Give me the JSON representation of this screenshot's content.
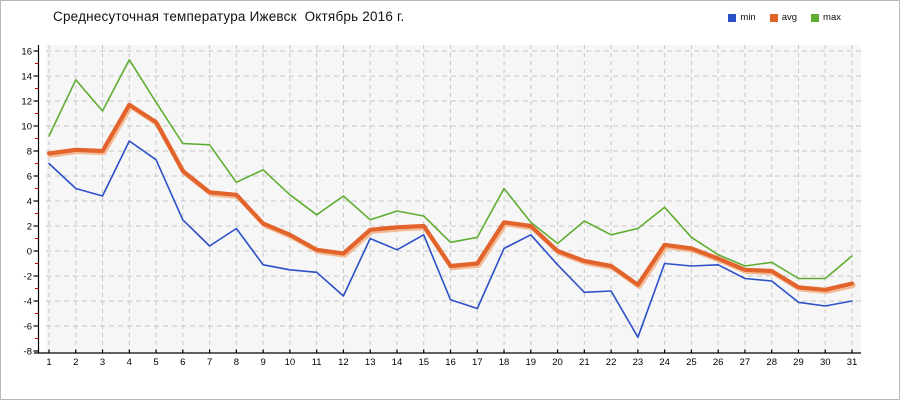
{
  "title": "Среднесуточная температура Ижевск  Октябрь 2016 г.",
  "legend": [
    {
      "label": "min",
      "color": "#2b50c8"
    },
    {
      "label": "avg",
      "color": "#e2632b"
    },
    {
      "label": "max",
      "color": "#5fae32"
    }
  ],
  "chart_data": {
    "type": "line",
    "title": "Среднесуточная температура Ижевск  Октябрь 2016 г.",
    "x": [
      1,
      2,
      3,
      4,
      5,
      6,
      7,
      8,
      9,
      10,
      11,
      12,
      13,
      14,
      15,
      16,
      17,
      18,
      19,
      20,
      21,
      22,
      23,
      24,
      25,
      26,
      27,
      28,
      29,
      30,
      31
    ],
    "series": [
      {
        "name": "min",
        "color": "#2b50c8",
        "values": [
          7.0,
          5.0,
          4.4,
          8.8,
          7.3,
          2.5,
          0.4,
          1.8,
          -1.1,
          -1.5,
          -1.7,
          -3.6,
          1.0,
          0.1,
          1.3,
          -3.9,
          -4.6,
          0.2,
          1.3,
          -1.1,
          -3.3,
          -3.2,
          -6.9,
          -1.0,
          -1.2,
          -1.1,
          -2.2,
          -2.4,
          -4.1,
          -4.4,
          -4.0
        ]
      },
      {
        "name": "avg",
        "color": "#e2632b",
        "values": [
          7.8,
          8.1,
          8.0,
          11.7,
          10.3,
          6.4,
          4.7,
          4.5,
          2.2,
          1.3,
          0.1,
          -0.2,
          1.7,
          1.9,
          2.0,
          -1.2,
          -1.0,
          2.3,
          2.0,
          0.0,
          -0.8,
          -1.2,
          -2.7,
          0.5,
          0.2,
          -0.6,
          -1.5,
          -1.6,
          -2.9,
          -3.1,
          -2.6
        ]
      },
      {
        "name": "max",
        "color": "#5fae32",
        "values": [
          9.2,
          13.7,
          11.2,
          15.3,
          11.9,
          8.6,
          8.5,
          5.5,
          6.5,
          4.5,
          2.9,
          4.4,
          2.5,
          3.2,
          2.8,
          0.7,
          1.1,
          5.0,
          2.3,
          0.6,
          2.4,
          1.3,
          1.8,
          3.5,
          1.1,
          -0.3,
          -1.2,
          -0.9,
          -2.2,
          -2.2,
          -0.4
        ]
      }
    ],
    "xlabel": "",
    "ylabel": "",
    "ylim": [
      -8,
      16
    ],
    "ytick_step": 2,
    "grid": true,
    "legend_position": "top-right",
    "axis_color": "#000000",
    "minor_tick_color": "#cc0000",
    "grid_color": "#c7c7c7",
    "plot_bg": "#f6f6f6"
  }
}
